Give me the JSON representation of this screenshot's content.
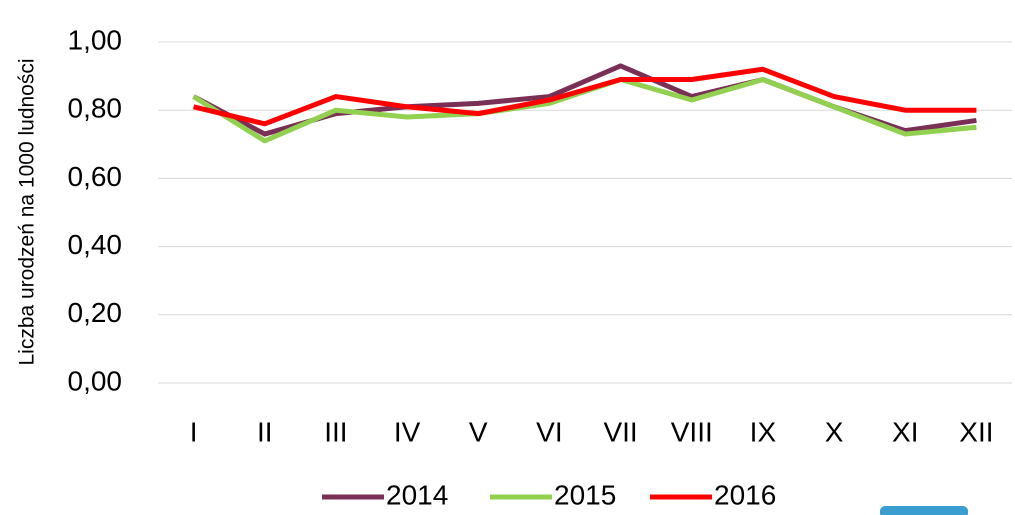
{
  "chart_data": {
    "type": "line",
    "y_label": "Liczba urodzeń na 1000 ludności",
    "categories": [
      "I",
      "II",
      "III",
      "IV",
      "V",
      "VI",
      "VII",
      "VIII",
      "IX",
      "X",
      "XI",
      "XII"
    ],
    "series": [
      {
        "name": "2014",
        "color": "#7a2f55",
        "values": [
          0.84,
          0.73,
          0.79,
          0.81,
          0.82,
          0.84,
          0.93,
          0.84,
          0.89,
          0.81,
          0.74,
          0.77
        ]
      },
      {
        "name": "2015",
        "color": "#92d050",
        "values": [
          0.84,
          0.71,
          0.8,
          0.78,
          0.79,
          0.82,
          0.89,
          0.83,
          0.89,
          0.81,
          0.73,
          0.75
        ]
      },
      {
        "name": "2016",
        "color": "#ff0000",
        "values": [
          0.81,
          0.76,
          0.84,
          0.81,
          0.79,
          0.83,
          0.89,
          0.89,
          0.92,
          0.84,
          0.8,
          0.8
        ]
      }
    ],
    "ylim": [
      0,
      1
    ],
    "yticks": [
      {
        "value": 0,
        "label": "0,00"
      },
      {
        "value": 0.2,
        "label": "0,20"
      },
      {
        "value": 0.4,
        "label": "0,40"
      },
      {
        "value": 0.6,
        "label": "0,60"
      },
      {
        "value": 0.8,
        "label": "0,80"
      },
      {
        "value": 1,
        "label": "1,00"
      }
    ],
    "grid": true,
    "legend": "bottom"
  }
}
